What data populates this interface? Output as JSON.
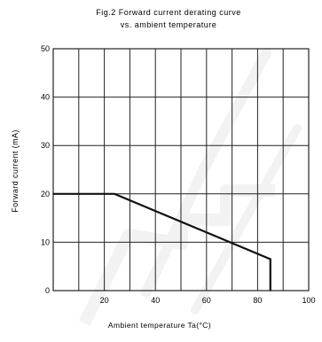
{
  "chart_data": {
    "type": "line",
    "title": "Fig.2 Forward current derating curve",
    "subtitle": "vs. ambient temperature",
    "xlabel": "Ambient temperature Ta(°C)",
    "ylabel": "Forward current (mA)",
    "xlim": [
      0,
      100
    ],
    "ylim": [
      0,
      50
    ],
    "x_ticks": [
      20,
      40,
      60,
      80,
      100
    ],
    "y_ticks": [
      0,
      10,
      20,
      30,
      40,
      50
    ],
    "grid": true,
    "series": [
      {
        "values": [
          {
            "x": 0,
            "y": 20
          },
          {
            "x": 24,
            "y": 20
          },
          {
            "x": 85,
            "y": 6.5
          },
          {
            "x": 85,
            "y": 0
          }
        ]
      }
    ],
    "colors": {
      "line": "#111111",
      "grid": "#222222",
      "watermark": "#bfbfbf"
    }
  }
}
